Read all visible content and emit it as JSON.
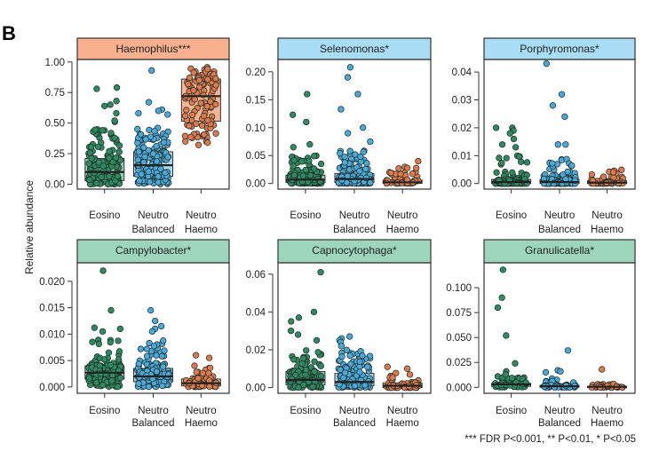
{
  "panel_label": "B",
  "y_axis_label": "Relative abundance",
  "footnote": "*** FDR P<0.001, ** P<0.01,  * P<0.05",
  "colors": {
    "Eosino": {
      "dot": "#2f8a62",
      "box": "#93cdb0"
    },
    "Neutro Balanced": {
      "dot": "#4aa9d8",
      "box": "#a9daf0"
    },
    "Neutro Haemo": {
      "dot": "#de7a4c",
      "box": "#f6b494"
    },
    "strip_orange": "#f8b08e",
    "strip_blue": "#a8ddf5",
    "strip_green": "#9dd6bd"
  },
  "chart_data": [
    {
      "type": "box+strip",
      "title": "Haemophilus***",
      "strip": "strip_orange",
      "categories": [
        "Eosino",
        "Neutro Balanced",
        " Neutro Haemo"
      ],
      "ticks": [
        "0.00",
        "0.25",
        "0.50",
        "0.75",
        "1.00"
      ],
      "ylim": [
        -0.04,
        1.02
      ],
      "groups": [
        {
          "name": "Eosino",
          "q1": 0.03,
          "median": 0.1,
          "q3": 0.21,
          "wmax": 0.45,
          "n": 150,
          "outliers": [
            0.78,
            0.79,
            0.68,
            0.65,
            0.64,
            0.58,
            0.51,
            0.52
          ]
        },
        {
          "name": "Neutro Balanced",
          "q1": 0.065,
          "median": 0.155,
          "q3": 0.265,
          "wmax": 0.46,
          "n": 170,
          "outliers": [
            0.93,
            0.67,
            0.61,
            0.6,
            0.57,
            0.58
          ]
        },
        {
          "name": "Neutro Haemo",
          "q1": 0.515,
          "median": 0.72,
          "q3": 0.86,
          "wmin": 0.3,
          "wmax": 0.96,
          "n": 110,
          "outliers": []
        }
      ]
    },
    {
      "type": "box+strip",
      "title": "Selenomonas*",
      "strip": "strip_blue",
      "categories": [
        "Eosino",
        "Neutro Balanced",
        "Neutro Haemo"
      ],
      "ticks": [
        "0.00",
        "0.05",
        "0.10",
        "0.15",
        "0.20"
      ],
      "ylim": [
        -0.01,
        0.222
      ],
      "groups": [
        {
          "name": "Eosino",
          "q1": 0.002,
          "median": 0.007,
          "q3": 0.015,
          "wmax": 0.05,
          "n": 150,
          "outliers": [
            0.16,
            0.123,
            0.11,
            0.07,
            0.065
          ]
        },
        {
          "name": "Neutro Balanced",
          "q1": 0.002,
          "median": 0.008,
          "q3": 0.018,
          "wmax": 0.06,
          "n": 170,
          "outliers": [
            0.208,
            0.19,
            0.16,
            0.133,
            0.1,
            0.09,
            0.075
          ]
        },
        {
          "name": "Neutro Haemo",
          "q1": 0.0005,
          "median": 0.002,
          "q3": 0.006,
          "wmax": 0.03,
          "n": 60,
          "outliers": [
            0.04
          ]
        }
      ]
    },
    {
      "type": "box+strip",
      "title": "Porphyromonas*",
      "strip": "strip_blue",
      "categories": [
        "Eosino",
        "Neutro Balanced",
        "Neutro Haemo"
      ],
      "ticks": [
        "0.00",
        "0.01",
        "0.02",
        "0.03",
        "0.04"
      ],
      "ylim": [
        -0.002,
        0.0445
      ],
      "groups": [
        {
          "name": "Eosino",
          "q1": 0.0,
          "median": 0.0005,
          "q3": 0.0015,
          "wmax": 0.01,
          "n": 130,
          "outliers": [
            0.02,
            0.02,
            0.019,
            0.018,
            0.016,
            0.014,
            0.013
          ]
        },
        {
          "name": "Neutro Balanced",
          "q1": 0.0,
          "median": 0.0005,
          "q3": 0.0015,
          "wmax": 0.009,
          "n": 150,
          "outliers": [
            0.043,
            0.032,
            0.028,
            0.024,
            0.014,
            0.014
          ]
        },
        {
          "name": "Neutro Haemo",
          "q1": 0.0,
          "median": 0.0003,
          "q3": 0.001,
          "wmax": 0.005,
          "n": 60,
          "outliers": []
        }
      ]
    },
    {
      "type": "box+strip",
      "title": "Campylobacter*",
      "strip": "strip_green",
      "categories": [
        "Eosino",
        "Neutro Balanced",
        "Neutro Haemo"
      ],
      "ticks": [
        "0.000",
        "0.005",
        "0.010",
        "0.015",
        "0.020"
      ],
      "ylim": [
        -0.0012,
        0.0235
      ],
      "groups": [
        {
          "name": "Eosino",
          "q1": 0.0015,
          "median": 0.0027,
          "q3": 0.004,
          "wmax": 0.009,
          "n": 150,
          "outliers": [
            0.022,
            0.0145,
            0.0112,
            0.011,
            0.0105
          ]
        },
        {
          "name": "Neutro Balanced",
          "q1": 0.001,
          "median": 0.002,
          "q3": 0.0035,
          "wmax": 0.009,
          "n": 150,
          "outliers": [
            0.0145,
            0.0125,
            0.0115,
            0.011,
            0.0105
          ]
        },
        {
          "name": "Neutro Haemo",
          "q1": 0.0002,
          "median": 0.0007,
          "q3": 0.0015,
          "wmax": 0.004,
          "n": 70,
          "outliers": [
            0.006,
            0.0055
          ]
        }
      ]
    },
    {
      "type": "box+strip",
      "title": "Capnocytophaga*",
      "strip": "strip_green",
      "categories": [
        "Eosino",
        "Neutro Balanced",
        "Neutro Haemo"
      ],
      "ticks": [
        "0.00",
        "0.02",
        "0.04",
        "0.06"
      ],
      "ylim": [
        -0.003,
        0.066
      ],
      "groups": [
        {
          "name": "Eosino",
          "q1": 0.0015,
          "median": 0.004,
          "q3": 0.0085,
          "wmax": 0.02,
          "n": 150,
          "outliers": [
            0.061,
            0.04,
            0.037,
            0.035,
            0.03,
            0.028,
            0.025
          ]
        },
        {
          "name": "Neutro Balanced",
          "q1": 0.001,
          "median": 0.003,
          "q3": 0.0075,
          "wmax": 0.02,
          "n": 160,
          "outliers": [
            0.027,
            0.026,
            0.025,
            0.024,
            0.022
          ]
        },
        {
          "name": "Neutro Haemo",
          "q1": 0.0,
          "median": 0.001,
          "q3": 0.0025,
          "wmax": 0.008,
          "n": 60,
          "outliers": [
            0.01,
            0.011
          ]
        }
      ]
    },
    {
      "type": "box+strip",
      "title": "Granulicatella*",
      "strip": "strip_green",
      "categories": [
        "Eosino",
        "Neutro Balanced",
        "Neutro Haemo"
      ],
      "ticks": [
        "0.000",
        "0.025",
        "0.050",
        "0.075",
        "0.100"
      ],
      "ylim": [
        -0.006,
        0.125
      ],
      "groups": [
        {
          "name": "Eosino",
          "q1": 0.001,
          "median": 0.003,
          "q3": 0.004,
          "wmax": 0.012,
          "n": 60,
          "outliers": [
            0.118,
            0.09,
            0.08,
            0.052,
            0.024,
            0.016,
            0.013
          ]
        },
        {
          "name": "Neutro Balanced",
          "q1": 0.0,
          "median": 0.001,
          "q3": 0.002,
          "wmax": 0.01,
          "n": 60,
          "outliers": [
            0.037,
            0.017,
            0.016,
            0.015
          ]
        },
        {
          "name": "Neutro Haemo",
          "q1": 0.0,
          "median": 0.0005,
          "q3": 0.001,
          "wmax": 0.004,
          "n": 40,
          "outliers": [
            0.018
          ]
        }
      ]
    }
  ],
  "category_labels": [
    [
      "Eosino",
      ""
    ],
    [
      "Neutro",
      "Balanced"
    ],
    [
      "Neutro",
      "Haemo"
    ]
  ]
}
